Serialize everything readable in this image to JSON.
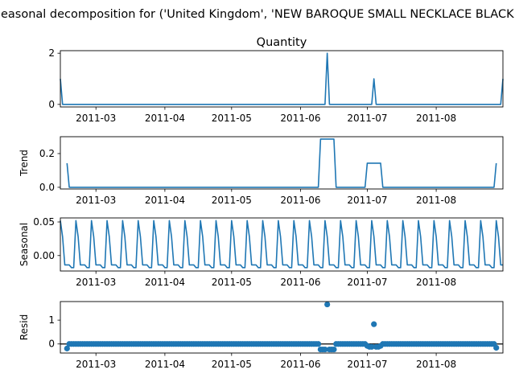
{
  "suptitle": "Seasonal decomposition for ('United Kingdom', 'NEW BAROQUE SMALL NECKLACE BLACK')",
  "colors": {
    "series": "#1f77b4",
    "axis": "#000000",
    "background": "#ffffff"
  },
  "chart_data": [
    {
      "type": "line",
      "panel": "observed",
      "title": "Quantity",
      "ylabel": "",
      "x_range": [
        "2011-02-13",
        "2011-08-31"
      ],
      "ylim": [
        -0.1,
        2.1
      ],
      "yticks": [
        0,
        2
      ],
      "yticklabels": [
        "0",
        "2"
      ],
      "xticks": [
        "2011-03-01",
        "2011-04-01",
        "2011-05-01",
        "2011-06-01",
        "2011-07-01",
        "2011-08-01"
      ],
      "xticklabels": [
        "2011-03",
        "2011-04",
        "2011-05",
        "2011-06",
        "2011-07",
        "2011-08"
      ],
      "series": [
        {
          "x": [
            "2011-02-13",
            "2011-02-14",
            "2011-06-12",
            "2011-06-13",
            "2011-06-14",
            "2011-07-03",
            "2011-07-04",
            "2011-07-05",
            "2011-08-30",
            "2011-08-31"
          ],
          "y": [
            1,
            0,
            0,
            2,
            0,
            0,
            1,
            0,
            0,
            1
          ]
        }
      ]
    },
    {
      "type": "line",
      "panel": "trend",
      "title": "",
      "ylabel": "Trend",
      "x_range": [
        "2011-02-13",
        "2011-08-31"
      ],
      "ylim": [
        -0.01,
        0.3
      ],
      "yticks": [
        0.0,
        0.2
      ],
      "yticklabels": [
        "0.0",
        "0.2"
      ],
      "xticks": [
        "2011-03-01",
        "2011-04-01",
        "2011-05-01",
        "2011-06-01",
        "2011-07-01",
        "2011-08-01"
      ],
      "xticklabels": [
        "2011-03",
        "2011-04",
        "2011-05",
        "2011-06",
        "2011-07",
        "2011-08"
      ],
      "series": [
        {
          "x": [
            "2011-02-16",
            "2011-02-17",
            "2011-06-09",
            "2011-06-10",
            "2011-06-16",
            "2011-06-17",
            "2011-06-30",
            "2011-07-01",
            "2011-07-07",
            "2011-07-08",
            "2011-08-27",
            "2011-08-28"
          ],
          "y": [
            0.143,
            0,
            0,
            0.286,
            0.286,
            0,
            0,
            0.143,
            0.143,
            0,
            0,
            0.143
          ]
        }
      ]
    },
    {
      "type": "line",
      "panel": "seasonal",
      "title": "",
      "ylabel": "Seasonal",
      "x_range": [
        "2011-02-13",
        "2011-08-31"
      ],
      "ylim": [
        -0.023,
        0.056
      ],
      "yticks": [
        0.0,
        0.05
      ],
      "yticklabels": [
        "0.00",
        "0.05"
      ],
      "xticks": [
        "2011-03-01",
        "2011-04-01",
        "2011-05-01",
        "2011-06-01",
        "2011-07-01",
        "2011-08-01"
      ],
      "xticklabels": [
        "2011-03",
        "2011-04",
        "2011-05",
        "2011-06",
        "2011-07",
        "2011-08"
      ],
      "period_start": "2011-02-13",
      "period_pattern": [
        0.052,
        0.028,
        -0.014,
        -0.014,
        -0.014,
        -0.018,
        -0.018
      ]
    },
    {
      "type": "scatter",
      "panel": "resid",
      "title": "",
      "ylabel": "Resid",
      "x_range": [
        "2011-02-13",
        "2011-08-31"
      ],
      "ylim": [
        -0.38,
        1.78
      ],
      "yticks": [
        0,
        1
      ],
      "yticklabels": [
        "0",
        "1"
      ],
      "xticks": [
        "2011-03-01",
        "2011-04-01",
        "2011-05-01",
        "2011-06-01",
        "2011-07-01",
        "2011-08-01"
      ],
      "xticklabels": [
        "2011-03",
        "2011-04",
        "2011-05",
        "2011-06",
        "2011-07",
        "2011-08"
      ],
      "baseline": 0,
      "x_start": "2011-02-16",
      "x_end": "2011-08-28",
      "default_y": 0,
      "overrides": [
        {
          "x": "2011-02-16",
          "y": -0.19
        },
        {
          "x": "2011-06-10",
          "y": -0.23
        },
        {
          "x": "2011-06-11",
          "y": -0.23
        },
        {
          "x": "2011-06-12",
          "y": -0.23
        },
        {
          "x": "2011-06-13",
          "y": 1.66
        },
        {
          "x": "2011-06-14",
          "y": -0.23
        },
        {
          "x": "2011-06-15",
          "y": -0.23
        },
        {
          "x": "2011-06-16",
          "y": -0.23
        },
        {
          "x": "2011-07-01",
          "y": -0.08
        },
        {
          "x": "2011-07-02",
          "y": -0.12
        },
        {
          "x": "2011-07-03",
          "y": -0.12
        },
        {
          "x": "2011-07-04",
          "y": 0.83
        },
        {
          "x": "2011-07-05",
          "y": -0.12
        },
        {
          "x": "2011-07-06",
          "y": -0.12
        },
        {
          "x": "2011-07-07",
          "y": -0.08
        },
        {
          "x": "2011-08-28",
          "y": -0.16
        }
      ]
    }
  ]
}
